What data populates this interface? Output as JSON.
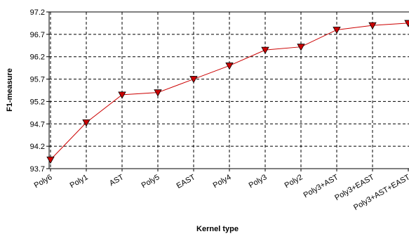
{
  "chart_data": {
    "type": "line",
    "title": "",
    "xlabel": "Kernel type",
    "ylabel": "F1-measure",
    "categories": [
      "Poly6",
      "Poly1",
      "AST",
      "Poly5",
      "EAST",
      "Poly4",
      "Poly3",
      "Poly2",
      "Poly3+AST",
      "Poly3+EAST",
      "Poly3+AST+EAST"
    ],
    "series": [
      {
        "values": [
          93.9,
          94.73,
          95.35,
          95.4,
          95.7,
          96.0,
          96.35,
          96.42,
          96.8,
          96.9,
          96.95
        ]
      }
    ],
    "yticks": [
      "97.2",
      "96.7",
      "96.2",
      "95.7",
      "95.2",
      "94.7",
      "94.2",
      "93.7"
    ],
    "ylim": [
      93.7,
      97.2
    ],
    "grid": true,
    "line_color": "#cc0000",
    "marker_color": "#cc0000",
    "marker": "down-triangle"
  }
}
